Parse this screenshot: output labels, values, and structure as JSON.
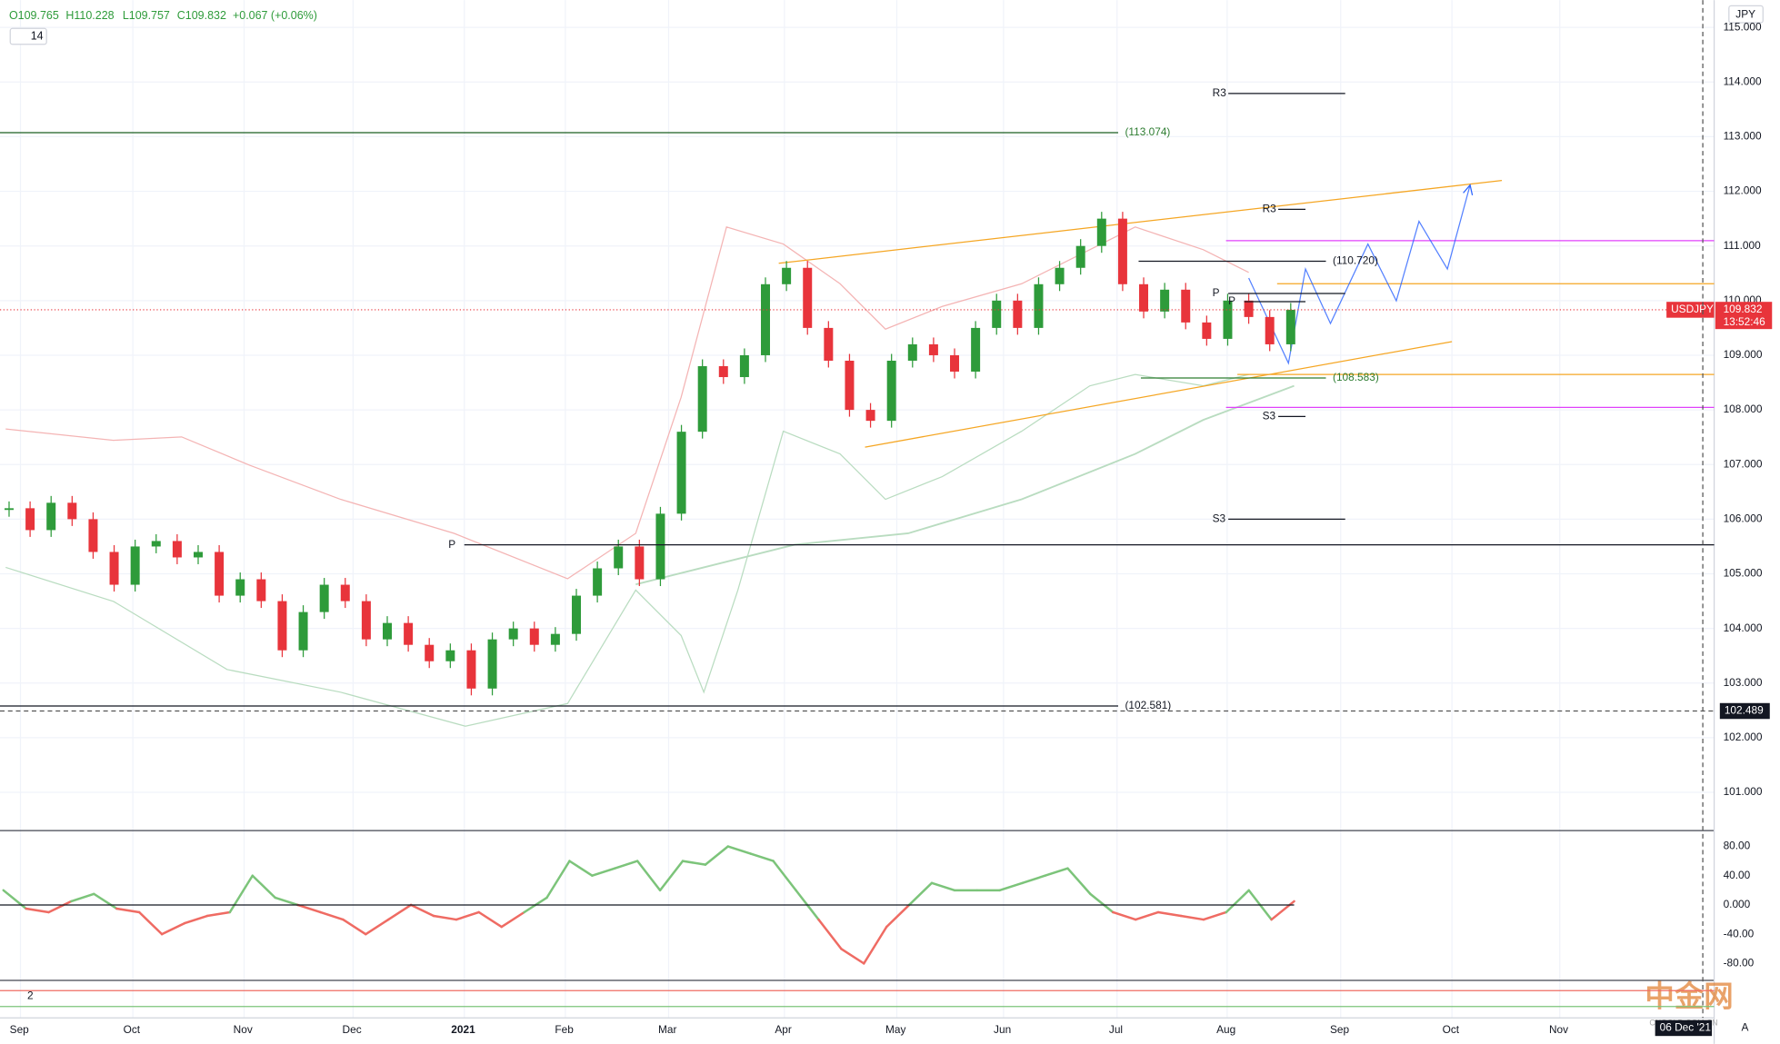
{
  "chart_data": {
    "type": "candlestick",
    "symbol": "USDJPY",
    "header": {
      "open": "O109.765",
      "high": "H110.228",
      "low": "L109.757",
      "close": "C109.832",
      "change": "+0.067 (+0.06%)",
      "length": "14"
    },
    "currency": "JPY",
    "ylim": [
      100.3,
      115.5
    ],
    "yticks": [
      {
        "value": 115,
        "label": "115.000"
      },
      {
        "value": 114,
        "label": "114.000"
      },
      {
        "value": 113,
        "label": "113.000"
      },
      {
        "value": 112,
        "label": "112.000"
      },
      {
        "value": 111,
        "label": "111.000"
      },
      {
        "value": 110,
        "label": "110.000"
      },
      {
        "value": 109,
        "label": "109.000"
      },
      {
        "value": 108,
        "label": "108.000"
      },
      {
        "value": 107,
        "label": "107.000"
      },
      {
        "value": 106,
        "label": "106.000"
      },
      {
        "value": 105,
        "label": "105.000"
      },
      {
        "value": 104,
        "label": "104.000"
      },
      {
        "value": 103,
        "label": "103.000"
      },
      {
        "value": 102,
        "label": "102.000"
      },
      {
        "value": 101,
        "label": "101.000"
      }
    ],
    "time_labels": [
      "Sep",
      "Oct",
      "Nov",
      "Dec",
      "2021",
      "Feb",
      "Mar",
      "Apr",
      "May",
      "Jun",
      "Jul",
      "Aug",
      "Sep",
      "Oct",
      "Nov"
    ],
    "series": [
      {
        "name": "USDJPY",
        "up_color": "#2e9b3a",
        "down_color": "#e8343b",
        "values": [
          106.2,
          105.8,
          106.3,
          106.0,
          105.4,
          104.8,
          105.5,
          105.6,
          105.3,
          105.4,
          104.6,
          104.9,
          104.5,
          103.6,
          104.3,
          104.8,
          104.5,
          103.8,
          104.1,
          103.7,
          103.4,
          103.6,
          102.9,
          103.8,
          104.0,
          103.7,
          103.9,
          104.6,
          105.1,
          105.5,
          104.9,
          106.1,
          107.6,
          108.8,
          108.6,
          109.0,
          110.3,
          110.6,
          109.5,
          108.9,
          108.0,
          107.8,
          108.9,
          109.2,
          109.0,
          108.7,
          109.5,
          110.0,
          109.5,
          110.3,
          110.6,
          111.0,
          111.5,
          110.3,
          109.8,
          110.2,
          109.6,
          109.3,
          110.0,
          109.7,
          109.2,
          109.832
        ]
      }
    ],
    "last_price": {
      "value": 109.832,
      "label": "109.832",
      "countdown": "13:52:46"
    },
    "crosshair": {
      "value": 102.489,
      "label": "102.489",
      "date": "06 Dec '21"
    },
    "levels": [
      {
        "value": 113.074,
        "label": "(113.074)"
      },
      {
        "value": 110.72,
        "label": "(110.720)"
      },
      {
        "value": 108.583,
        "label": "(108.583)"
      },
      {
        "value": 102.581,
        "label": "(102.581)"
      }
    ],
    "pivots": [
      {
        "label": "R3",
        "value": 113.79
      },
      {
        "label": "R3",
        "value": 111.67
      },
      {
        "label": "P",
        "value": 110.13
      },
      {
        "label": "P",
        "value": 109.98
      },
      {
        "label": "S3",
        "value": 107.88
      },
      {
        "label": "S3",
        "value": 106.0
      },
      {
        "label": "P",
        "value": 105.53
      }
    ],
    "oscillator": {
      "ylim": [
        -100,
        100
      ],
      "yticks": [
        {
          "value": 80,
          "label": "80.00"
        },
        {
          "value": 40,
          "label": "40.00"
        },
        {
          "value": 0,
          "label": "0.000"
        },
        {
          "value": -40,
          "label": "-40.00"
        },
        {
          "value": -80,
          "label": "-80.00"
        }
      ],
      "pos_color": "#7cc47a",
      "neg_color": "#ef6b63",
      "values": [
        20,
        -5,
        -10,
        5,
        15,
        -5,
        -10,
        -40,
        -25,
        -15,
        -10,
        40,
        10,
        0,
        -10,
        -20,
        -40,
        -20,
        0,
        -15,
        -20,
        -10,
        -30,
        -10,
        10,
        60,
        40,
        50,
        60,
        20,
        60,
        55,
        80,
        70,
        60,
        20,
        -20,
        -60,
        -80,
        -30,
        0,
        30,
        20,
        20,
        20,
        30,
        40,
        50,
        15,
        -10,
        -20,
        -10,
        -15,
        -20,
        -10,
        20,
        -20,
        5
      ]
    },
    "pane3_label": "2",
    "watermark": "中金网",
    "watermark_sub": "CNGOLD.COM.CN",
    "corner_label": "A"
  }
}
